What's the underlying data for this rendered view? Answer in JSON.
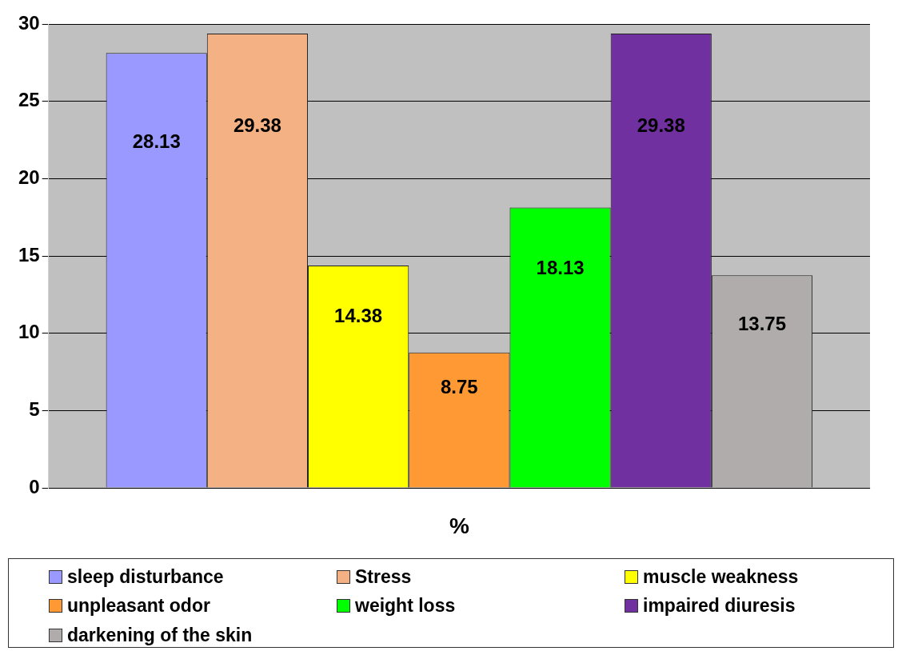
{
  "chart_data": {
    "type": "bar",
    "xlabel": "%",
    "categories": [
      null
    ],
    "series": [
      {
        "name": "sleep disturbance",
        "color": "#9999ff",
        "values": [
          28.13
        ]
      },
      {
        "name": "Stress",
        "color": "#f4b183",
        "values": [
          29.38
        ]
      },
      {
        "name": "muscle weakness",
        "color": "#ffff00",
        "values": [
          14.38
        ]
      },
      {
        "name": "unpleasant odor",
        "color": "#ff9933",
        "values": [
          8.75
        ]
      },
      {
        "name": "weight loss",
        "color": "#00ff00",
        "values": [
          18.13
        ]
      },
      {
        "name": "impaired diuresis",
        "color": "#7030a0",
        "values": [
          29.38
        ]
      },
      {
        "name": "darkening of the skin",
        "color": "#b0acac",
        "values": [
          13.75
        ]
      }
    ],
    "ylim": [
      0,
      30
    ],
    "yticks": [
      0,
      5,
      10,
      15,
      20,
      25,
      30
    ],
    "grid": "y",
    "legend": "bottom",
    "data_labels": true
  }
}
